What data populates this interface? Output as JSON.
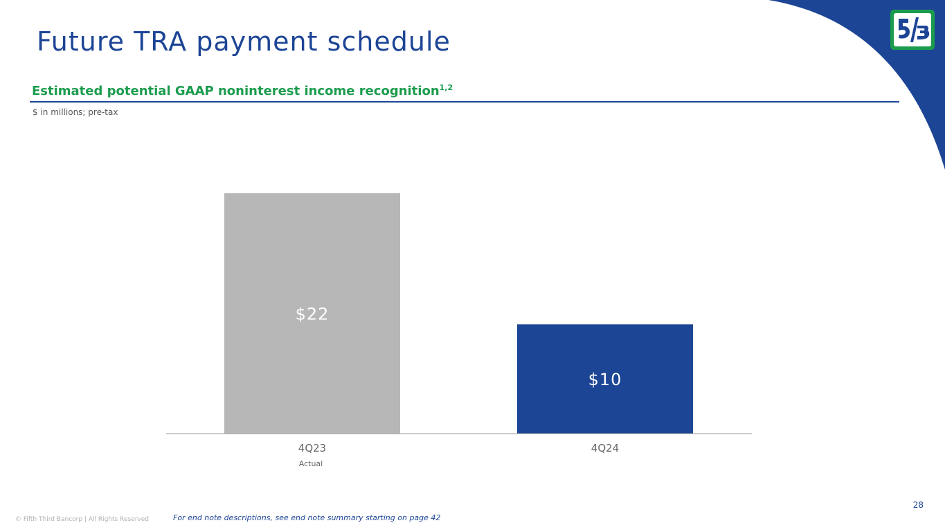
{
  "title": "Future TRA payment schedule",
  "subtitle": {
    "text": "Estimated potential GAAP noninterest income recognition",
    "footnote_marks": "1,2"
  },
  "units_note": "$ in millions; pre-tax",
  "colors": {
    "brand_blue": "#1d4596",
    "brand_green": "#1b9c4d",
    "actual_gray": "#b7b7b7"
  },
  "logo": {
    "icon": "fifth-third-logo-icon"
  },
  "chart_data": {
    "type": "bar",
    "categories": [
      "4Q23",
      "4Q24"
    ],
    "category_sublabels": [
      "Actual",
      ""
    ],
    "values": [
      22,
      10
    ],
    "value_labels": [
      "$22",
      "$10"
    ],
    "bar_colors": [
      "#b7b7b7",
      "#1d4596"
    ],
    "title": "",
    "xlabel": "",
    "ylabel": "",
    "ylim": [
      0,
      22
    ],
    "grid": false,
    "legend": "none"
  },
  "footer": {
    "copyright": "© Fifth Third Bancorp | All Rights Reserved",
    "endnote": "For end note descriptions, see end note summary starting on page 42",
    "page_number": "28"
  }
}
